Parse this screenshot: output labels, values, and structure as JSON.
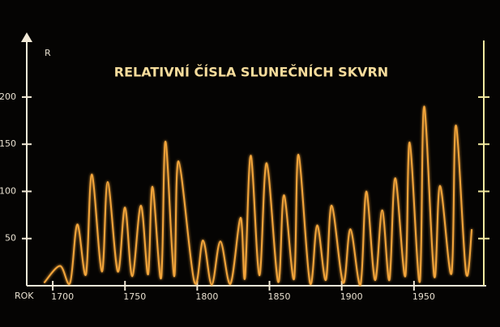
{
  "chart_data": {
    "type": "line",
    "title": "RELATIVNÍ ČÍSLA SLUNEČNÍCH SKVRN",
    "y_label": "R",
    "x_label": "ROK",
    "x": [
      1694,
      1705,
      1712,
      1717,
      1723,
      1727,
      1734,
      1738,
      1745,
      1750,
      1755,
      1761,
      1766,
      1769,
      1775,
      1778,
      1784,
      1787,
      1798,
      1804,
      1810,
      1816,
      1823,
      1830,
      1833,
      1837,
      1843,
      1848,
      1856,
      1860,
      1867,
      1870,
      1878,
      1883,
      1889,
      1893,
      1901,
      1906,
      1913,
      1917,
      1923,
      1928,
      1933,
      1937,
      1944,
      1947,
      1954,
      1957,
      1964,
      1968,
      1976,
      1979,
      1986,
      1990
    ],
    "series": [
      {
        "color": "#f3a53a",
        "values": [
          3,
          21,
          3,
          65,
          12,
          118,
          15,
          110,
          15,
          83,
          10,
          85,
          12,
          105,
          8,
          153,
          10,
          132,
          4,
          48,
          1,
          47,
          2,
          72,
          8,
          138,
          11,
          130,
          4,
          96,
          7,
          139,
          3,
          64,
          6,
          85,
          3,
          60,
          1,
          100,
          6,
          80,
          6,
          114,
          10,
          152,
          4,
          190,
          10,
          106,
          13,
          170,
          14,
          60
        ]
      }
    ],
    "xlim": [
      1682,
      2000
    ],
    "ylim": [
      0,
      260
    ],
    "xticks": [
      1700,
      1750,
      1800,
      1850,
      1900,
      1950
    ],
    "yticks": [
      50,
      100,
      150,
      200
    ]
  }
}
